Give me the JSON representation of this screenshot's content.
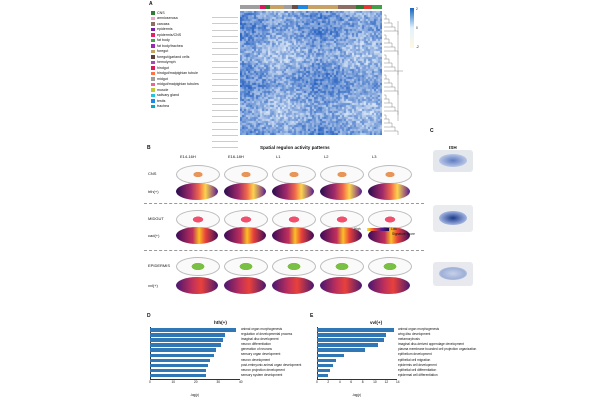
{
  "panels": {
    "a": "A",
    "b": "B",
    "c": "C",
    "d": "D",
    "e": "E"
  },
  "legend_a": [
    {
      "label": "CNS",
      "color": "#2e7d32"
    },
    {
      "label": "amnioserosa",
      "color": "#f2a3c9"
    },
    {
      "label": "carcass",
      "color": "#8d6e63"
    },
    {
      "label": "epidermis",
      "color": "#7b1fa2"
    },
    {
      "label": "epidermis/CNS",
      "color": "#e91e63"
    },
    {
      "label": "fat body",
      "color": "#43a047"
    },
    {
      "label": "fat body/trachea",
      "color": "#9c27b0"
    },
    {
      "label": "foregut",
      "color": "#c8a165"
    },
    {
      "label": "foregut/garland cells",
      "color": "#5d4037"
    },
    {
      "label": "hemolymph",
      "color": "#ab47bc"
    },
    {
      "label": "hindgut",
      "color": "#d81b60"
    },
    {
      "label": "hindgut/malpighian tubule",
      "color": "#ff7043"
    },
    {
      "label": "midgut",
      "color": "#9e9e9e"
    },
    {
      "label": "midgut/malpighian tubules",
      "color": "#f06292"
    },
    {
      "label": "muscle",
      "color": "#c0ca33"
    },
    {
      "label": "salivary gland",
      "color": "#26c6da"
    },
    {
      "label": "testis",
      "color": "#1e88e5"
    },
    {
      "label": "trachea",
      "color": "#00acc1"
    }
  ],
  "colorbar": [
    "2",
    "0",
    "-2"
  ],
  "panel_b": {
    "title": "Spatial regulon activity patterns",
    "stages": [
      "E14-16H",
      "E16-18H",
      "L1",
      "L2",
      "L3"
    ],
    "rows": [
      "CNS",
      "hth(+)",
      "MIDGUT",
      "cad(+)",
      "EPIDERMIS",
      "vvl(+)"
    ],
    "legend": {
      "high": "High",
      "low": "Low",
      "score": "Signature Score"
    }
  },
  "panel_c": {
    "title": "ISH"
  },
  "panel_d": {
    "title": "hth(+)",
    "xlabel": "-log(p)",
    "ticks": [
      "0",
      "10",
      "20",
      "30",
      "40"
    ],
    "terms": [
      {
        "label": "animal organ morphogenesis",
        "value": 40
      },
      {
        "label": "regulation of developmental process",
        "value": 35
      },
      {
        "label": "imaginal disc development",
        "value": 34
      },
      {
        "label": "neuron differentiation",
        "value": 33
      },
      {
        "label": "generation of neurons",
        "value": 31
      },
      {
        "label": "sensory organ development",
        "value": 30
      },
      {
        "label": "neuron development",
        "value": 28
      },
      {
        "label": "post-embryonic animal organ development",
        "value": 27
      },
      {
        "label": "neuron projection development",
        "value": 26
      },
      {
        "label": "sensory system development",
        "value": 26
      }
    ]
  },
  "panel_e": {
    "title": "vvl(+)",
    "xlabel": "-log(p)",
    "ticks": [
      "0",
      "2",
      "4",
      "6",
      "8",
      "10",
      "12",
      "14"
    ],
    "terms": [
      {
        "label": "animal organ morphogenesis",
        "value": 14.5
      },
      {
        "label": "wing disc development",
        "value": 13
      },
      {
        "label": "metamorphosis",
        "value": 12.5
      },
      {
        "label": "imaginal disc-derived appendage development",
        "value": 11.5
      },
      {
        "label": "plasma membrane bounded cell projection organization",
        "value": 9
      },
      {
        "label": "epithelium development",
        "value": 5
      },
      {
        "label": "epithelial cell migration",
        "value": 3.5
      },
      {
        "label": "epidermis cell development",
        "value": 3
      },
      {
        "label": "epithelial cell differentiation",
        "value": 2.5
      },
      {
        "label": "epidermal cell differentiation",
        "value": 2
      }
    ]
  }
}
